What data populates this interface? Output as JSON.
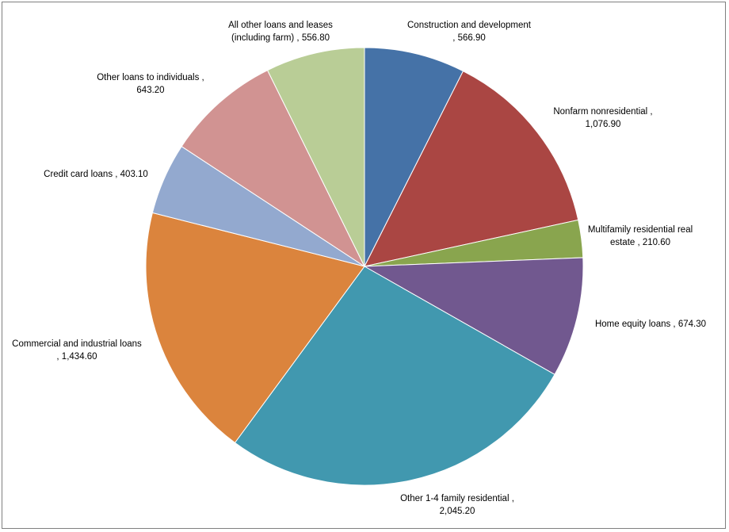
{
  "chart_data": {
    "type": "pie",
    "title": "",
    "legend": "none",
    "slices": [
      {
        "label_lines": [
          "Construction and development",
          ", 566.90"
        ],
        "value": 566.9,
        "color": "#4572a7"
      },
      {
        "label_lines": [
          "Nonfarm nonresidential ,",
          "1,076.90"
        ],
        "value": 1076.9,
        "color": "#aa4643"
      },
      {
        "label_lines": [
          "Multifamily residential real",
          "estate , 210.60"
        ],
        "value": 210.6,
        "color": "#89a54e"
      },
      {
        "label_lines": [
          "Home equity loans , 674.30"
        ],
        "value": 674.3,
        "color": "#71588f"
      },
      {
        "label_lines": [
          "Other 1-4 family residential ,",
          "2,045.20"
        ],
        "value": 2045.2,
        "color": "#4198af"
      },
      {
        "label_lines": [
          "Commercial and industrial loans",
          ", 1,434.60"
        ],
        "value": 1434.6,
        "color": "#db843d"
      },
      {
        "label_lines": [
          "Credit card loans , 403.10"
        ],
        "value": 403.1,
        "color": "#93a9cf"
      },
      {
        "label_lines": [
          "Other loans to individuals ,",
          "643.20"
        ],
        "value": 643.2,
        "color": "#d19392"
      },
      {
        "label_lines": [
          "All other loans and leases",
          "(including farm) , 556.80"
        ],
        "value": 556.8,
        "color": "#b9cd96"
      }
    ]
  }
}
